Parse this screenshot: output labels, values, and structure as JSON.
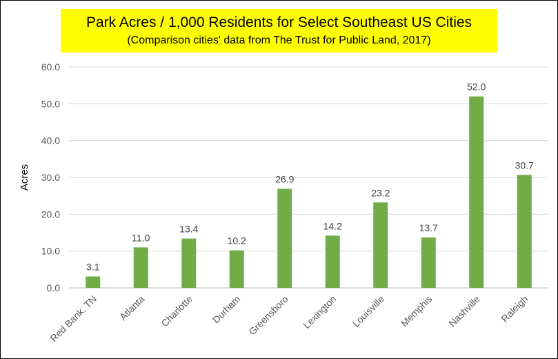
{
  "chart_data": {
    "type": "bar",
    "title": "Park Acres / 1,000 Residents for Select Southeast US Cities",
    "subtitle": "(Comparison cities' data from The Trust for Public Land, 2017)",
    "xlabel": "",
    "ylabel": "Acres",
    "categories": [
      "Red Bank, TN",
      "Atlanta",
      "Charlotte",
      "Durham",
      "Greensboro",
      "Lexington",
      "Louisville",
      "Memphis",
      "Nashville",
      "Raleigh"
    ],
    "values": [
      3.1,
      11.0,
      13.4,
      10.2,
      26.9,
      14.2,
      23.2,
      13.7,
      52.0,
      30.7
    ],
    "data_labels": [
      "3.1",
      "11.0",
      "13.4",
      "10.2",
      "26.9",
      "14.2",
      "23.2",
      "13.7",
      "52.0",
      "30.7"
    ],
    "yticks": [
      "0.0",
      "10.0",
      "20.0",
      "30.0",
      "40.0",
      "50.0",
      "60.0"
    ],
    "ylim": [
      0,
      60
    ],
    "grid": true,
    "legend": "none",
    "bar_color": "#70ad47",
    "title_background": "#ffff00"
  }
}
